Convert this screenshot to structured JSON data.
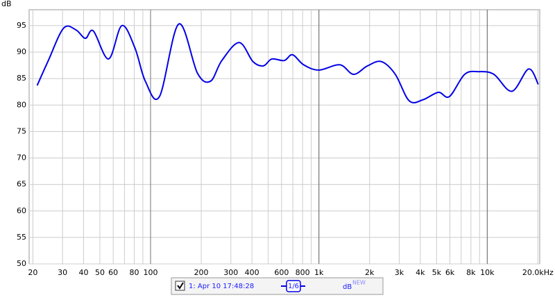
{
  "chart_data": {
    "type": "line",
    "y_label": "dB",
    "x_scale": "log",
    "xlim": [
      19,
      20500
    ],
    "ylim": [
      50,
      98
    ],
    "yticks": [
      50,
      55,
      60,
      65,
      70,
      75,
      80,
      85,
      90,
      95
    ],
    "xticks": [
      20,
      30,
      40,
      50,
      60,
      80,
      100,
      200,
      300,
      400,
      600,
      800,
      {
        "value": 1000,
        "label": "1k"
      },
      {
        "value": 2000,
        "label": "2k"
      },
      {
        "value": 3000,
        "label": "3k"
      },
      {
        "value": 4000,
        "label": "4k"
      },
      {
        "value": 5000,
        "label": "5k"
      },
      {
        "value": 6000,
        "label": "6k"
      },
      {
        "value": 8000,
        "label": "8k"
      },
      {
        "value": 10000,
        "label": "10k"
      },
      {
        "value": 20000,
        "label": "20.0kHz"
      }
    ],
    "x_minor_grid": [
      70,
      90,
      500,
      700,
      900,
      7000,
      9000
    ],
    "major_x_grid": [
      100,
      1000,
      10000
    ],
    "grid": true,
    "series": [
      {
        "name": "1: Apr 10 17:48:28",
        "smoothing": "1/6",
        "smoothing_unit": "dB",
        "smoothing_badge": "NEW",
        "color": "#0000e6",
        "x": [
          21.2,
          24.7,
          30.4,
          36,
          41,
          45.7,
          56.3,
          67.5,
          80.7,
          93.1,
          113,
          147,
          190,
          227,
          265,
          336,
          406,
          468,
          525,
          622,
          697,
          811,
          1000,
          1330,
          1607,
          1944,
          2350,
          2843,
          3437,
          4156,
          5118,
          5958,
          7345,
          8876,
          10940,
          14000,
          17590,
          20100
        ],
        "values": [
          83.7,
          88.4,
          94.5,
          94.2,
          92.6,
          94,
          88.7,
          95,
          90.8,
          84.5,
          81.6,
          95.3,
          86,
          84.5,
          88.4,
          91.8,
          88.2,
          87.4,
          88.7,
          88.4,
          89.5,
          87.6,
          86.6,
          87.6,
          85.8,
          87.4,
          88.2,
          85.8,
          80.8,
          81,
          82.4,
          81.6,
          85.8,
          86.3,
          85.8,
          82.6,
          86.8,
          83.9
        ]
      }
    ]
  }
}
